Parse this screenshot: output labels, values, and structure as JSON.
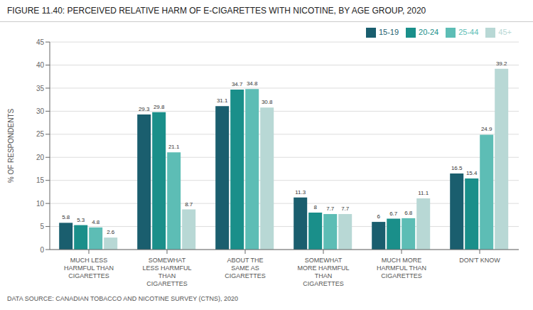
{
  "chart_data": {
    "type": "bar",
    "title": "FIGURE 11.40: PERCEIVED RELATIVE HARM OF E-CIGARETTES WITH NICOTINE, BY AGE GROUP, 2020",
    "annotations": [
      "DATA SOURCE: CANADIAN TOBACCO AND NICOTINE SURVEY (CTNS), 2020"
    ],
    "y_label": "% OF RESPONDENTS",
    "categories": [
      "MUCH LESS\nHARMFUL THAN\nCIGARETTES",
      "SOMEWHAT\nLESS HARMFUL\nTHAN\nCIGARETTES",
      "ABOUT THE\nSAME AS\nCIGARETTES",
      "SOMEWHAT\nMORE HARMFUL\nTHAN\nCIGARETTES",
      "MUCH MORE\nHARMFUL THAN\nCIGARETTES",
      "DON'T KNOW"
    ],
    "series": [
      {
        "name": "15-19",
        "color": "#1a5e6e",
        "values": [
          5.8,
          29.3,
          31.1,
          11.3,
          6.0,
          16.5
        ]
      },
      {
        "name": "20-24",
        "color": "#1a8f8a",
        "values": [
          5.3,
          29.8,
          34.7,
          8.0,
          6.7,
          15.4
        ]
      },
      {
        "name": "25-44",
        "color": "#5dbdb5",
        "values": [
          4.8,
          21.1,
          34.8,
          7.7,
          6.8,
          24.9
        ]
      },
      {
        "name": "45+",
        "color": "#b8d8d5",
        "values": [
          2.6,
          8.7,
          30.8,
          7.7,
          11.1,
          39.2
        ]
      }
    ],
    "ylim": [
      0,
      45
    ],
    "yticks": [
      0,
      5,
      10,
      15,
      20,
      25,
      30,
      35,
      40,
      45
    ],
    "grid": true,
    "legend": "upper right",
    "data_labels": true
  }
}
